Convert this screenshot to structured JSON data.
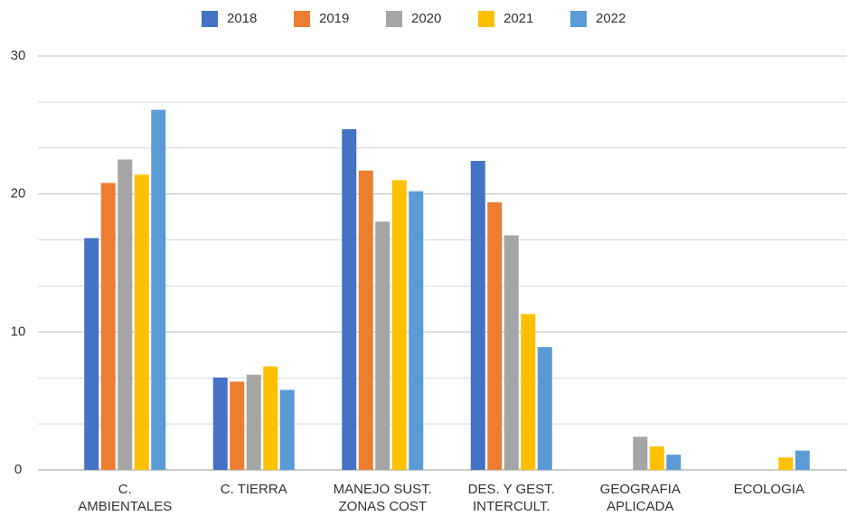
{
  "chart_data": {
    "type": "bar",
    "categories": [
      "C.\nAMBIENTALES",
      "C. TIERRA",
      "MANEJO SUST.\nZONAS COST",
      "DES. Y GEST.\nINTERCULT.",
      "GEOGRAFIA\nAPLICADA",
      "ECOLOGIA"
    ],
    "series": [
      {
        "name": "2018",
        "color": "#4472c4",
        "values": [
          16.8,
          6.7,
          24.7,
          22.4,
          null,
          null
        ]
      },
      {
        "name": "2019",
        "color": "#ed7d31",
        "values": [
          20.8,
          6.4,
          21.7,
          19.4,
          null,
          null
        ]
      },
      {
        "name": "2020",
        "color": "#a5a5a5",
        "values": [
          22.5,
          6.9,
          18.0,
          17.0,
          2.4,
          null
        ]
      },
      {
        "name": "2021",
        "color": "#ffc000",
        "values": [
          21.4,
          7.5,
          21.0,
          11.3,
          1.7,
          0.9
        ]
      },
      {
        "name": "2022",
        "color": "#5b9bd5",
        "values": [
          26.1,
          5.8,
          20.2,
          8.9,
          1.1,
          1.4
        ]
      }
    ],
    "ylim": [
      0,
      30
    ],
    "yticks": [
      0,
      10,
      20,
      30
    ],
    "grid": true,
    "minor_grid_divisions": 3,
    "legend": "top"
  }
}
